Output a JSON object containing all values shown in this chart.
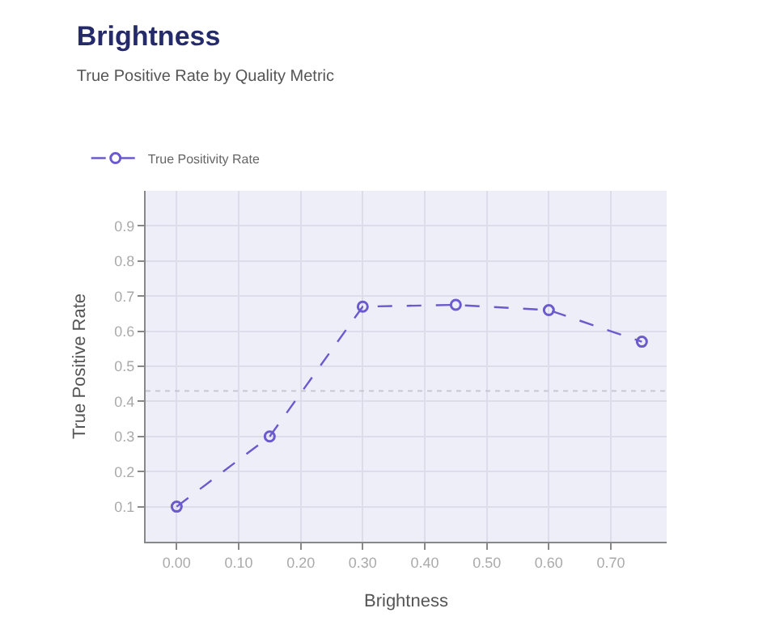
{
  "chart_data": {
    "type": "line",
    "title": "Brightness",
    "subtitle": "True Positive Rate by Quality Metric",
    "xlabel": "Brightness",
    "ylabel": "True Positive Rate",
    "x": [
      0.0,
      0.15,
      0.3,
      0.45,
      0.6,
      0.75
    ],
    "series": [
      {
        "name": "True Positivity Rate",
        "color": "#6a5acd",
        "values": [
          0.1,
          0.3,
          0.67,
          0.675,
          0.66,
          0.57
        ]
      }
    ],
    "xlim": [
      -0.05,
      0.79
    ],
    "xticks": [
      {
        "value": 0,
        "label": "0.00"
      },
      {
        "value": 0.1,
        "label": "0.10"
      },
      {
        "value": 0.2,
        "label": "0.20"
      },
      {
        "value": 0.3,
        "label": "0.30"
      },
      {
        "value": 0.4,
        "label": "0.40"
      },
      {
        "value": 0.5,
        "label": "0.50"
      },
      {
        "value": 0.6,
        "label": "0.60"
      },
      {
        "value": 0.7,
        "label": "0.70"
      }
    ],
    "ylim": [
      0,
      1.0
    ],
    "yticks": [
      0.1,
      0.2,
      0.3,
      0.4,
      0.5,
      0.6,
      0.7,
      0.8,
      0.9
    ],
    "ref_lines": [
      {
        "axis": "y",
        "value": 0.43,
        "color": "#c8c8d4",
        "line_style": "dotted"
      }
    ],
    "grid": true,
    "legend": "top left",
    "marker": "circle",
    "line_style": "dashed"
  }
}
